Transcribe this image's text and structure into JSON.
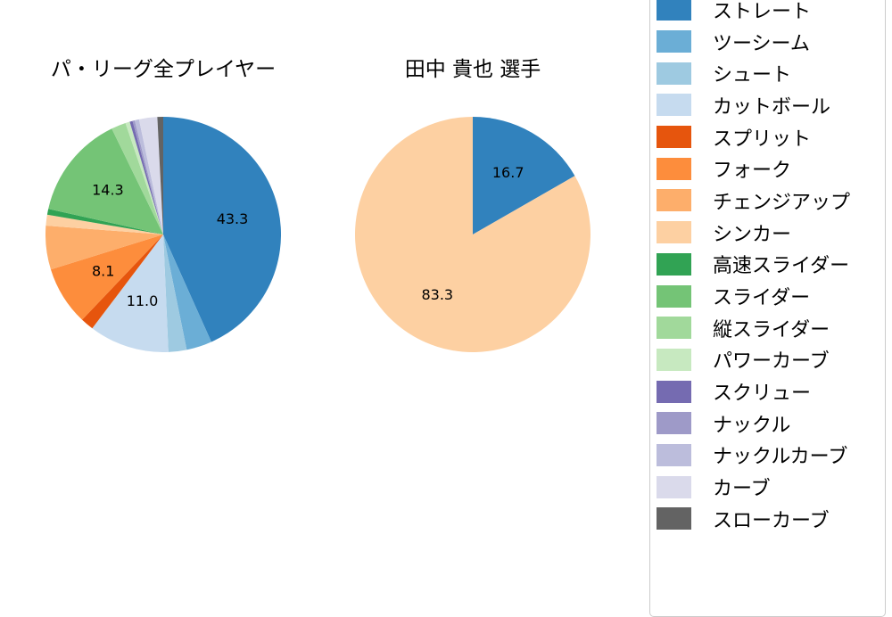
{
  "chart_data": [
    {
      "type": "pie",
      "title": "パ・リーグ全プレイヤー",
      "direction": "clockwise",
      "start_angle": "top",
      "legend_position": "right",
      "note": "slices without a printed value label are estimated from arc length",
      "slices": [
        {
          "label": "ストレート",
          "value": 43.3,
          "display": "43.3",
          "color": "#3182bd"
        },
        {
          "label": "ツーシーム",
          "value": 3.5,
          "display": "",
          "color": "#6baed6"
        },
        {
          "label": "シュート",
          "value": 2.5,
          "display": "",
          "color": "#9ecae1"
        },
        {
          "label": "カットボール",
          "value": 11.0,
          "display": "11.0",
          "color": "#c6dbef"
        },
        {
          "label": "スプリット",
          "value": 1.8,
          "display": "",
          "color": "#e6550d"
        },
        {
          "label": "フォーク",
          "value": 8.1,
          "display": "8.1",
          "color": "#fd8d3c"
        },
        {
          "label": "チェンジアップ",
          "value": 6.0,
          "display": "",
          "color": "#fdae6b"
        },
        {
          "label": "シンカー",
          "value": 1.5,
          "display": "",
          "color": "#fdd0a2"
        },
        {
          "label": "高速スライダー",
          "value": 0.8,
          "display": "",
          "color": "#31a354"
        },
        {
          "label": "スライダー",
          "value": 14.3,
          "display": "14.3",
          "color": "#74c476"
        },
        {
          "label": "縦スライダー",
          "value": 2.0,
          "display": "",
          "color": "#a1d99b"
        },
        {
          "label": "パワーカーブ",
          "value": 0.6,
          "display": "",
          "color": "#c7e9c0"
        },
        {
          "label": "スクリュー",
          "value": 0.4,
          "display": "",
          "color": "#756bb1"
        },
        {
          "label": "ナックル",
          "value": 0.3,
          "display": "",
          "color": "#9e9ac8"
        },
        {
          "label": "ナックルカーブ",
          "value": 0.6,
          "display": "",
          "color": "#bcbddc"
        },
        {
          "label": "カーブ",
          "value": 2.5,
          "display": "",
          "color": "#dadaeb"
        },
        {
          "label": "スローカーブ",
          "value": 0.8,
          "display": "",
          "color": "#636363"
        }
      ]
    },
    {
      "type": "pie",
      "title": "田中 貴也 選手",
      "direction": "clockwise",
      "start_angle": "top",
      "legend_position": "right",
      "slices": [
        {
          "label": "ストレート",
          "value": 16.7,
          "display": "16.7",
          "color": "#3182bd"
        },
        {
          "label": "シンカー",
          "value": 83.3,
          "display": "83.3",
          "color": "#fdd0a2"
        }
      ]
    }
  ],
  "legend": {
    "items": [
      {
        "label": "ストレート",
        "color": "#3182bd"
      },
      {
        "label": "ツーシーム",
        "color": "#6baed6"
      },
      {
        "label": "シュート",
        "color": "#9ecae1"
      },
      {
        "label": "カットボール",
        "color": "#c6dbef"
      },
      {
        "label": "スプリット",
        "color": "#e6550d"
      },
      {
        "label": "フォーク",
        "color": "#fd8d3c"
      },
      {
        "label": "チェンジアップ",
        "color": "#fdae6b"
      },
      {
        "label": "シンカー",
        "color": "#fdd0a2"
      },
      {
        "label": "高速スライダー",
        "color": "#31a354"
      },
      {
        "label": "スライダー",
        "color": "#74c476"
      },
      {
        "label": "縦スライダー",
        "color": "#a1d99b"
      },
      {
        "label": "パワーカーブ",
        "color": "#c7e9c0"
      },
      {
        "label": "スクリュー",
        "color": "#756bb1"
      },
      {
        "label": "ナックル",
        "color": "#9e9ac8"
      },
      {
        "label": "ナックルカーブ",
        "color": "#bcbddc"
      },
      {
        "label": "カーブ",
        "color": "#dadaeb"
      },
      {
        "label": "スローカーブ",
        "color": "#636363"
      }
    ]
  },
  "colors": {
    "background": "#ffffff",
    "legend_border": "#cccccc",
    "text": "#000000"
  }
}
